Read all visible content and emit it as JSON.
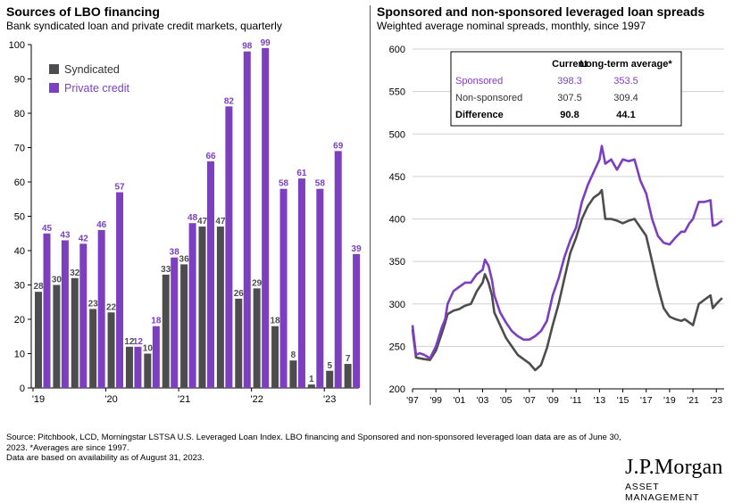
{
  "colors": {
    "syndicated": "#4d4d4d",
    "private": "#7b3fbf",
    "sponsored": "#7b3fbf",
    "nonsponsored": "#4d4d4d",
    "grid": "#d0d0d0"
  },
  "left": {
    "title": "Sources of LBO financing",
    "subtitle": "Bank syndicated loan and private credit markets, quarterly"
  },
  "right": {
    "title": "Sponsored and non-sponsored leveraged loan spreads",
    "subtitle": "Weighted average nominal spreads, monthly, since 1997",
    "table": {
      "header": [
        "",
        "Current",
        "Long-term average*"
      ],
      "rows": [
        [
          "Sponsored",
          "398.3",
          "353.5"
        ],
        [
          "Non-sponsored",
          "307.5",
          "309.4"
        ],
        [
          "Difference",
          "90.8",
          "44.1"
        ]
      ]
    }
  },
  "chart_data": [
    {
      "type": "bar",
      "title": "Sources of LBO financing",
      "subtitle": "Bank syndicated loan and private credit markets, quarterly",
      "ylim": [
        0,
        100
      ],
      "yticks": [
        0,
        10,
        20,
        30,
        40,
        50,
        60,
        70,
        80,
        90,
        100
      ],
      "legend": "top-left",
      "x_tick_labels": [
        "'19",
        "'20",
        "'21",
        "'22",
        "'23"
      ],
      "x_tick_positions": [
        0,
        4,
        8,
        12,
        16
      ],
      "series": [
        {
          "name": "Syndicated",
          "values": [
            28,
            30,
            32,
            23,
            22,
            12,
            10,
            33,
            36,
            47,
            47,
            26,
            29,
            18,
            8,
            1,
            5,
            7
          ]
        },
        {
          "name": "Private credit",
          "values": [
            45,
            43,
            42,
            46,
            57,
            12,
            18,
            38,
            48,
            66,
            82,
            98,
            99,
            58,
            61,
            58,
            69,
            39
          ]
        }
      ]
    },
    {
      "type": "line",
      "title": "Sponsored and non-sponsored leveraged loan spreads",
      "subtitle": "Weighted average nominal spreads, monthly, since 1997",
      "ylim": [
        200,
        600
      ],
      "yticks": [
        200,
        250,
        300,
        350,
        400,
        450,
        500,
        550,
        600
      ],
      "xlim": [
        1997,
        2023.67
      ],
      "x_tick_labels": [
        "'97",
        "'99",
        "'01",
        "'03",
        "'05",
        "'07",
        "'09",
        "'11",
        "'13",
        "'15",
        "'17",
        "'19",
        "'21",
        "'23"
      ],
      "x_tick_values": [
        1997,
        1999,
        2001,
        2003,
        2005,
        2007,
        2009,
        2011,
        2013,
        2015,
        2017,
        2019,
        2021,
        2023
      ],
      "grid": true,
      "series": [
        {
          "name": "Sponsored",
          "x": [
            1997,
            1997.3,
            1997.6,
            1998,
            1998.5,
            1999,
            1999.5,
            1999.8,
            2000,
            2000.5,
            2001,
            2001.5,
            2002,
            2002.5,
            2003,
            2003.2,
            2003.5,
            2003.8,
            2004,
            2004.5,
            2005,
            2005.5,
            2006,
            2006.5,
            2007,
            2007.5,
            2008,
            2008.5,
            2009,
            2009.5,
            2010,
            2010.5,
            2011,
            2011.5,
            2012,
            2012.5,
            2013,
            2013.2,
            2013.5,
            2014,
            2014.5,
            2015,
            2015.5,
            2016,
            2016.5,
            2017,
            2017.5,
            2018,
            2018.5,
            2019,
            2019.5,
            2020,
            2020.3,
            2020.7,
            2021,
            2021.5,
            2022,
            2022.5,
            2022.7,
            2023,
            2023.5
          ],
          "y": [
            275,
            240,
            242,
            240,
            236,
            250,
            272,
            282,
            300,
            315,
            320,
            325,
            325,
            335,
            340,
            352,
            345,
            328,
            310,
            290,
            278,
            268,
            262,
            258,
            258,
            262,
            268,
            280,
            310,
            330,
            355,
            375,
            390,
            420,
            440,
            455,
            470,
            486,
            465,
            470,
            458,
            470,
            468,
            470,
            445,
            430,
            400,
            380,
            372,
            370,
            378,
            385,
            385,
            395,
            400,
            420,
            420,
            422,
            392,
            393,
            398
          ]
        },
        {
          "name": "Non-sponsored",
          "x": [
            1997,
            1997.3,
            1997.6,
            1998,
            1998.5,
            1999,
            1999.5,
            1999.8,
            2000,
            2000.5,
            2001,
            2001.5,
            2002,
            2002.5,
            2003,
            2003.2,
            2003.5,
            2003.8,
            2004,
            2004.5,
            2005,
            2005.5,
            2006,
            2006.5,
            2007,
            2007.5,
            2008,
            2008.5,
            2009,
            2009.5,
            2010,
            2010.5,
            2011,
            2011.5,
            2012,
            2012.5,
            2013,
            2013.2,
            2013.5,
            2014,
            2014.5,
            2015,
            2015.5,
            2016,
            2016.5,
            2017,
            2017.5,
            2018,
            2018.5,
            2019,
            2019.5,
            2020,
            2020.3,
            2020.7,
            2021,
            2021.5,
            2022,
            2022.5,
            2022.7,
            2023,
            2023.5
          ],
          "y": [
            270,
            237,
            236,
            235,
            234,
            245,
            265,
            278,
            288,
            292,
            294,
            298,
            300,
            315,
            325,
            335,
            325,
            310,
            290,
            275,
            260,
            250,
            240,
            235,
            230,
            222,
            228,
            248,
            275,
            300,
            330,
            360,
            378,
            400,
            415,
            425,
            430,
            434,
            400,
            400,
            398,
            395,
            398,
            400,
            390,
            380,
            350,
            320,
            295,
            285,
            282,
            280,
            282,
            278,
            275,
            300,
            305,
            310,
            295,
            300,
            307
          ]
        }
      ]
    }
  ],
  "source_text": "Source: Pitchbook, LCD, Morningstar LSTSA U.S. Leveraged Loan Index. LBO financing and Sponsored and non-sponsored leveraged loan data are as of June 30, 2023. *Averages are since 1997.",
  "source_text2": "Data are based on availability as of August 31, 2023.",
  "logo": {
    "name": "J.P.Morgan",
    "sub": "ASSET MANAGEMENT"
  }
}
